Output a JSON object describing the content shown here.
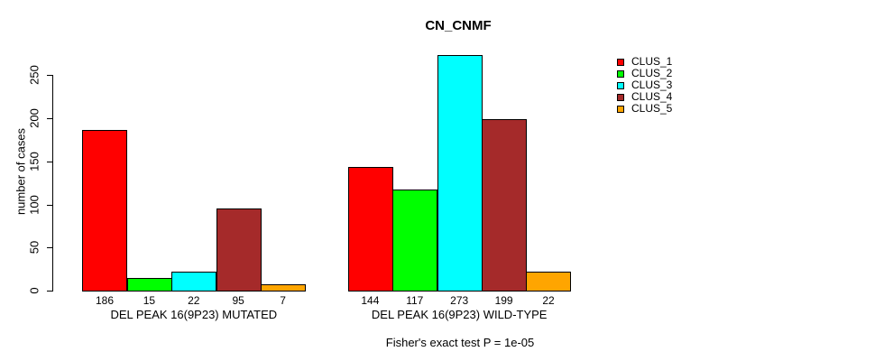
{
  "title": "CN_CNMF",
  "footer": "Fisher's exact test P = 1e-05",
  "chart_data": {
    "type": "bar",
    "title": "CN_CNMF",
    "xlabel": "",
    "ylabel": "number of cases",
    "ylim": [
      0,
      250
    ],
    "yticks": [
      0,
      50,
      100,
      150,
      200,
      250
    ],
    "grid": false,
    "legend_position": "top-right-outside",
    "categories": [
      "DEL PEAK 16(9P23) MUTATED",
      "DEL PEAK 16(9P23) WILD-TYPE"
    ],
    "series": [
      {
        "name": "CLUS_1",
        "color": "#ff0000",
        "values": [
          186,
          144
        ]
      },
      {
        "name": "CLUS_2",
        "color": "#00ff00",
        "values": [
          15,
          117
        ]
      },
      {
        "name": "CLUS_3",
        "color": "#00ffff",
        "values": [
          22,
          273
        ]
      },
      {
        "name": "CLUS_4",
        "color": "#a52a2a",
        "values": [
          95,
          199
        ]
      },
      {
        "name": "CLUS_5",
        "color": "#ffa500",
        "values": [
          7,
          22
        ]
      }
    ],
    "bar_value_labels_shown": true,
    "annotation": "Fisher's exact test P = 1e-05"
  }
}
